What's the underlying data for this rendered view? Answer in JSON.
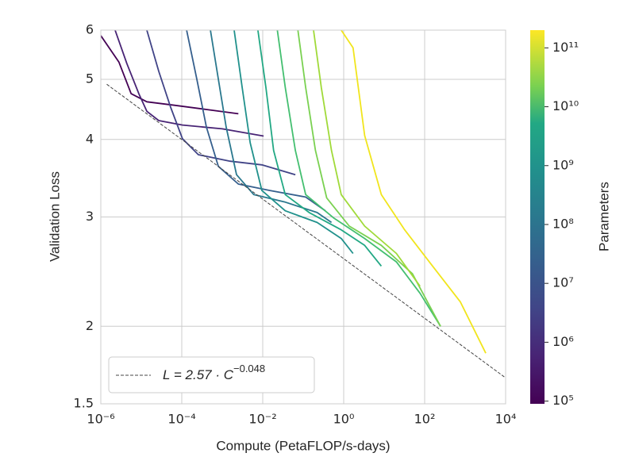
{
  "chart_data": {
    "type": "line",
    "xlabel": "Compute (PetaFLOP/s-days)",
    "ylabel": "Validation Loss",
    "xscale": "log",
    "yscale": "log",
    "grid": true,
    "xlim": [
      1e-06,
      10000
    ],
    "xticks": [
      {
        "value": 1e-06,
        "label": "10⁻⁶"
      },
      {
        "value": 0.0001,
        "label": "10⁻⁴"
      },
      {
        "value": 0.01,
        "label": "10⁻²"
      },
      {
        "value": 1,
        "label": "10⁰"
      },
      {
        "value": 100,
        "label": "10²"
      },
      {
        "value": 10000,
        "label": "10⁴"
      }
    ],
    "ylim": [
      1.5,
      6
    ],
    "yticks": [
      1.5,
      2,
      3,
      4,
      5,
      6
    ],
    "legend": "lower left",
    "fit": {
      "label_main": "L = 2.57 · C",
      "label_exponent": "−0.048",
      "coefficient": 2.57,
      "exponent": -0.048,
      "color": "#444444",
      "xrange": [
        1.4e-06,
        10000
      ]
    },
    "colorbar": {
      "label": "Parameters",
      "scale": "log",
      "colormap": "viridis",
      "clim": [
        90000,
        200000000000
      ],
      "ticks": [
        {
          "value": 100000,
          "label": "10⁵"
        },
        {
          "value": 1000000,
          "label": "10⁶"
        },
        {
          "value": 10000000,
          "label": "10⁷"
        },
        {
          "value": 100000000,
          "label": "10⁸"
        },
        {
          "value": 1000000000,
          "label": "10⁹"
        },
        {
          "value": 10000000000,
          "label": "10¹⁰"
        },
        {
          "value": 100000000000,
          "label": "10¹¹"
        }
      ]
    },
    "series": [
      {
        "color": "#440154",
        "x": [
          1e-06,
          2.8e-06,
          5.6e-06,
          1.37e-05,
          6.6e-05,
          0.000406,
          0.0025
        ],
        "values": [
          5.88,
          5.33,
          4.74,
          4.6,
          4.54,
          4.47,
          4.4
        ]
      },
      {
        "color": "#482475",
        "x": [
          2.25e-06,
          4.4e-06,
          8.7e-06,
          1.37e-05,
          2.7e-05,
          0.000104,
          0.001,
          0.0105
        ],
        "values": [
          6,
          5.3,
          4.74,
          4.44,
          4.29,
          4.22,
          4.16,
          4.05
        ]
      },
      {
        "color": "#414487",
        "x": [
          1.37e-05,
          2.7e-05,
          5.3e-05,
          0.000104,
          0.000257,
          0.00157,
          0.0095,
          0.064
        ],
        "values": [
          6,
          5.15,
          4.51,
          4.01,
          3.78,
          3.69,
          3.64,
          3.51
        ]
      },
      {
        "color": "#355f8d",
        "x": [
          0.000132,
          0.000236,
          0.000406,
          0.0008,
          0.0025,
          0.015,
          0.115,
          0.354
        ],
        "values": [
          6,
          5,
          4.19,
          3.62,
          3.39,
          3.31,
          3.23,
          3.07
        ]
      },
      {
        "color": "#2a788e",
        "x": [
          0.00051,
          0.0008,
          0.00125,
          0.00225,
          0.006,
          0.036,
          0.22,
          0.5
        ],
        "values": [
          6,
          5,
          4.19,
          3.51,
          3.26,
          3.17,
          3.05,
          2.94
        ]
      },
      {
        "color": "#21918c",
        "x": [
          0.00197,
          0.0031,
          0.0049,
          0.0095,
          0.036,
          0.22,
          0.87,
          1.7
        ],
        "values": [
          6,
          4.85,
          3.95,
          3.31,
          3.07,
          2.94,
          2.77,
          2.62
        ]
      },
      {
        "color": "#22a884",
        "x": [
          0.0076,
          0.012,
          0.0186,
          0.036,
          0.14,
          0.87,
          3.3,
          8.5
        ],
        "values": [
          6,
          4.85,
          3.84,
          3.26,
          3.05,
          2.86,
          2.7,
          2.5
        ]
      },
      {
        "color": "#44bf70",
        "x": [
          0.023,
          0.036,
          0.064,
          0.115,
          0.56,
          3.3,
          20,
          77,
          247
        ],
        "values": [
          6,
          4.85,
          3.84,
          3.26,
          2.99,
          2.77,
          2.54,
          2.26,
          2.0
        ]
      },
      {
        "color": "#7ad151",
        "x": [
          0.074,
          0.115,
          0.2,
          0.38,
          1.37,
          8.5,
          50,
          247
        ],
        "values": [
          6,
          4.85,
          3.84,
          3.22,
          2.9,
          2.7,
          2.43,
          2.0
        ]
      },
      {
        "color": "#a0da39",
        "x": [
          0.18,
          0.28,
          0.5,
          0.87,
          3.3,
          20,
          77
        ],
        "values": [
          6,
          4.85,
          3.84,
          3.26,
          2.9,
          2.62,
          2.32
        ]
      },
      {
        "color": "#f1e51d",
        "x": [
          0.87,
          1.7,
          3.3,
          8.5,
          32,
          157,
          760,
          3240
        ],
        "values": [
          6,
          5.62,
          4.06,
          3.26,
          2.86,
          2.5,
          2.19,
          1.81
        ]
      }
    ]
  }
}
